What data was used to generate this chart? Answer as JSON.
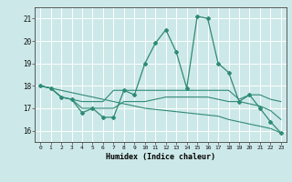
{
  "xlabel": "Humidex (Indice chaleur)",
  "x": [
    0,
    1,
    2,
    3,
    4,
    5,
    6,
    7,
    8,
    9,
    10,
    11,
    12,
    13,
    14,
    15,
    16,
    17,
    18,
    19,
    20,
    21,
    22,
    23
  ],
  "line_main": [
    18.0,
    17.9,
    17.5,
    17.4,
    16.8,
    17.0,
    16.6,
    16.6,
    17.8,
    17.6,
    19.0,
    19.9,
    20.5,
    19.5,
    17.9,
    21.1,
    21.0,
    19.0,
    18.6,
    17.3,
    17.6,
    17.0,
    16.4,
    15.9
  ],
  "line_upper": [
    18.0,
    17.9,
    17.5,
    17.4,
    17.3,
    17.3,
    17.3,
    17.8,
    17.8,
    17.8,
    17.8,
    17.8,
    17.8,
    17.8,
    17.8,
    17.8,
    17.8,
    17.8,
    17.8,
    17.4,
    17.6,
    17.6,
    17.4,
    17.3
  ],
  "line_lower": [
    18.0,
    17.9,
    17.5,
    17.4,
    17.0,
    17.0,
    17.0,
    17.0,
    17.3,
    17.3,
    17.3,
    17.4,
    17.5,
    17.5,
    17.5,
    17.5,
    17.5,
    17.4,
    17.3,
    17.3,
    17.2,
    17.1,
    16.9,
    16.5
  ],
  "line_trend": [
    18.0,
    17.9,
    17.8,
    17.7,
    17.6,
    17.5,
    17.4,
    17.3,
    17.2,
    17.1,
    17.0,
    16.95,
    16.9,
    16.85,
    16.8,
    16.75,
    16.7,
    16.65,
    16.5,
    16.4,
    16.3,
    16.2,
    16.1,
    15.9
  ],
  "color": "#2e8b74",
  "bg_color": "#cde8e8",
  "ylim": [
    15.5,
    21.5
  ],
  "xlim": [
    -0.5,
    23.5
  ],
  "yticks": [
    16,
    17,
    18,
    19,
    20,
    21
  ],
  "xticks": [
    0,
    1,
    2,
    3,
    4,
    5,
    6,
    7,
    8,
    9,
    10,
    11,
    12,
    13,
    14,
    15,
    16,
    17,
    18,
    19,
    20,
    21,
    22,
    23
  ]
}
